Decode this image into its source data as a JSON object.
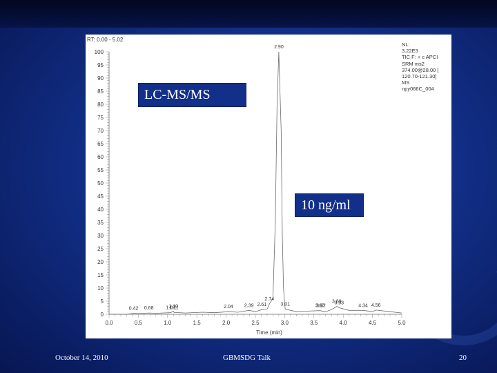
{
  "slide": {
    "date": "October 14, 2010",
    "center_text": "GBMSDG Talk",
    "page_number": "20"
  },
  "overlays": {
    "method": "LC-MS/MS",
    "concentration": "10 ng/ml"
  },
  "chromatogram": {
    "rt_range": "RT: 0.00 - 5.02",
    "meta_lines": [
      "NL:",
      "3.22E3",
      "TIC F: + c APCI",
      "SRM ms2",
      "374.00@28.00 [",
      "120.70-121.30]",
      "MS",
      "npy066C_004"
    ]
  },
  "chart_data": {
    "type": "line",
    "title": "",
    "xlabel": "Time (min)",
    "ylabel": "",
    "xlim": [
      0.0,
      5.0
    ],
    "ylim": [
      0,
      100
    ],
    "x_ticks": [
      0.0,
      0.5,
      1.0,
      1.5,
      2.0,
      2.5,
      3.0,
      3.5,
      4.0,
      4.5,
      5.0
    ],
    "x_tick_labels": [
      "0.0",
      "0.5",
      "1.0",
      "1.5",
      "2.0",
      "2.5",
      "3.0",
      "3.5",
      "4.0",
      "4.5",
      "5.0"
    ],
    "y_ticks": [
      0,
      5,
      10,
      15,
      20,
      25,
      30,
      35,
      40,
      45,
      50,
      55,
      60,
      65,
      70,
      75,
      80,
      85,
      90,
      95,
      100
    ],
    "y_tick_labels": [
      "0",
      "5",
      "10",
      "15",
      "20",
      "25",
      "30",
      "35",
      "40",
      "45",
      "50",
      "55",
      "60",
      "65",
      "70",
      "75",
      "80",
      "85",
      "90",
      "95",
      "100"
    ],
    "series": [
      {
        "x": [
          0.0,
          0.3,
          0.42,
          0.5,
          0.68,
          0.8,
          1.05,
          1.1,
          1.11,
          1.3,
          1.6,
          1.8,
          2.04,
          2.2,
          2.39,
          2.5,
          2.61,
          2.7,
          2.74,
          2.8,
          2.84,
          2.87,
          2.9,
          2.94,
          2.96,
          2.98,
          3.0,
          3.01,
          3.2,
          3.4,
          3.6,
          3.7,
          3.8,
          3.89,
          3.93,
          4.1,
          4.34,
          4.5,
          4.56,
          4.8,
          5.0
        ],
        "y": [
          0,
          0,
          0.4,
          0.3,
          0.5,
          0.4,
          0.6,
          1.2,
          0.7,
          0.5,
          0.8,
          0.6,
          1.0,
          0.8,
          1.5,
          1.0,
          1.8,
          2.0,
          4.0,
          6.0,
          35.0,
          80.0,
          100.0,
          70.0,
          30.0,
          10.0,
          4.0,
          2.0,
          1.0,
          1.2,
          1.4,
          1.0,
          1.8,
          3.0,
          2.5,
          1.5,
          1.5,
          1.0,
          1.6,
          1.0,
          0.5
        ]
      }
    ],
    "peak_labels": [
      {
        "x": 0.42,
        "y": 0.4,
        "text": "0.42"
      },
      {
        "x": 0.68,
        "y": 0.5,
        "text": "0.68"
      },
      {
        "x": 1.05,
        "y": 0.6,
        "text": "1.05"
      },
      {
        "x": 1.1,
        "y": 1.2,
        "text": "1.10"
      },
      {
        "x": 1.11,
        "y": 0.7,
        "text": "1.11"
      },
      {
        "x": 2.04,
        "y": 1.0,
        "text": "2.04"
      },
      {
        "x": 2.39,
        "y": 1.5,
        "text": "2.39"
      },
      {
        "x": 2.61,
        "y": 1.8,
        "text": "2.61"
      },
      {
        "x": 2.74,
        "y": 4.0,
        "text": "2.74"
      },
      {
        "x": 2.9,
        "y": 100.0,
        "text": "2.90"
      },
      {
        "x": 3.01,
        "y": 2.0,
        "text": "3.01"
      },
      {
        "x": 3.6,
        "y": 1.4,
        "text": "3.60"
      },
      {
        "x": 3.62,
        "y": 1.4,
        "text": "3.62"
      },
      {
        "x": 3.89,
        "y": 3.0,
        "text": "3.89"
      },
      {
        "x": 3.93,
        "y": 2.5,
        "text": "3.93"
      },
      {
        "x": 4.34,
        "y": 1.5,
        "text": "4.34"
      },
      {
        "x": 4.56,
        "y": 1.6,
        "text": "4.56"
      }
    ],
    "line_color": "#6a6a6a",
    "grid": false
  }
}
